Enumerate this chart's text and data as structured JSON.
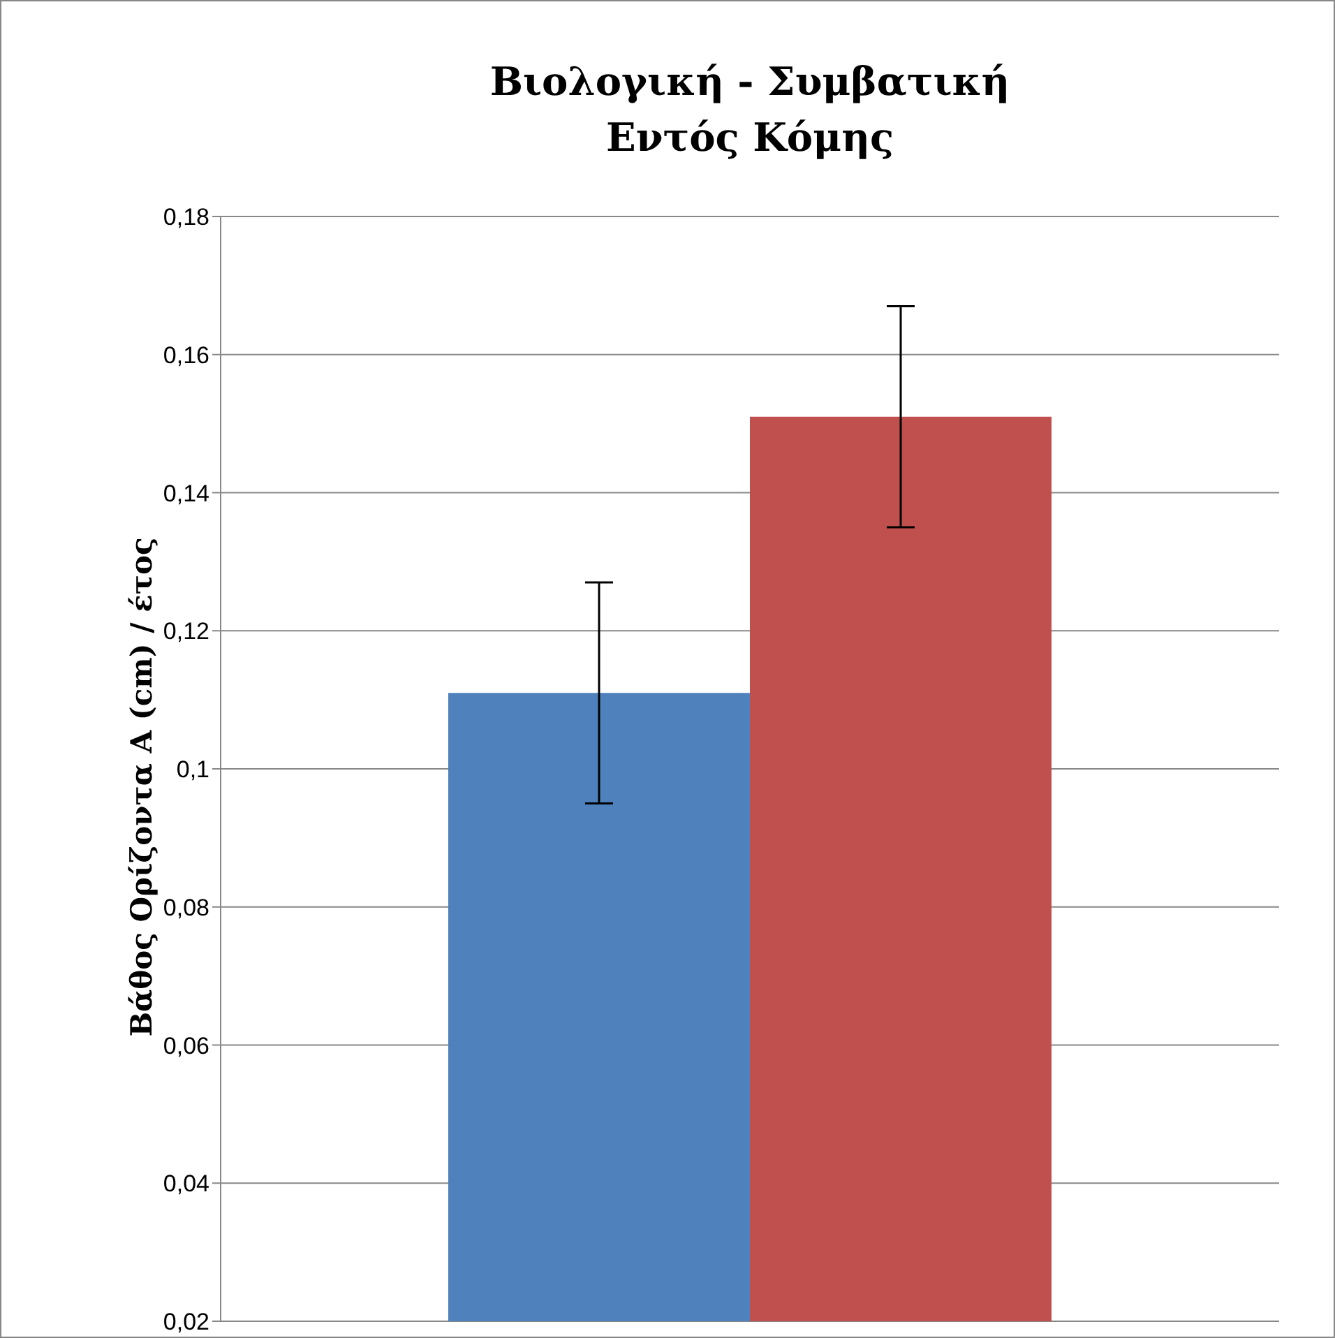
{
  "chart_data": {
    "type": "bar",
    "title": "Βιολογική - Συμβατική\nΕντός Κόμης",
    "ylabel": "Βάθος Ορίζοντα Α (cm) / έτος",
    "categories": [
      null
    ],
    "series": [
      {
        "color": "#4f81bd",
        "values": [
          0.111
        ],
        "errors": [
          0.016
        ]
      },
      {
        "color": "#c0504d",
        "values": [
          0.151
        ],
        "errors": [
          0.016
        ]
      }
    ],
    "ylim": [
      0.02,
      0.18
    ],
    "yticks": [
      {
        "value": 0.02,
        "label": "0,02"
      },
      {
        "value": 0.04,
        "label": "0,04"
      },
      {
        "value": 0.06,
        "label": "0,06"
      },
      {
        "value": 0.08,
        "label": "0,08"
      },
      {
        "value": 0.1,
        "label": "0,1"
      },
      {
        "value": 0.12,
        "label": "0,12"
      },
      {
        "value": 0.14,
        "label": "0,14"
      },
      {
        "value": 0.16,
        "label": "0,16"
      },
      {
        "value": 0.18,
        "label": "0,18"
      }
    ],
    "grid": "y",
    "legend": false
  }
}
